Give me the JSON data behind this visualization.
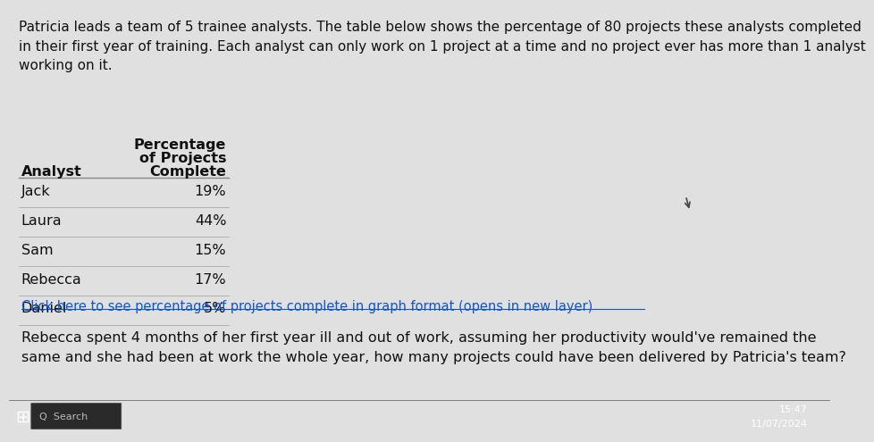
{
  "background_color": "#e0e0e0",
  "intro_text": "Patricia leads a team of 5 trainee analysts. The table below shows the percentage of 80 projects these analysts completed\nin their first year of training. Each analyst can only work on 1 project at a time and no project ever has more than 1 analyst\nworking on it.",
  "col_header_line1": "Percentage",
  "col_header_line2": "of Projects",
  "col_header_line3": "Complete",
  "col_analyst": "Analyst",
  "table_data": [
    [
      "Jack",
      "19%"
    ],
    [
      "Laura",
      "44%"
    ],
    [
      "Sam",
      "15%"
    ],
    [
      "Rebecca",
      "17%"
    ],
    [
      "Daniel",
      "5%"
    ]
  ],
  "link_text": "Click here to see percentage of projects complete in graph format (opens in new layer)",
  "question_text": "Rebecca spent 4 months of her first year ill and out of work, assuming her productivity would've remained the\nsame and she had been at work the whole year, how many projects could have been delivered by Patricia's team?",
  "taskbar_color": "#1a1a2e",
  "time_text": "15:47",
  "date_text": "11/07/2024",
  "intro_font_size": 11.0,
  "table_font_size": 11.5,
  "link_font_size": 10.5,
  "question_font_size": 11.5
}
